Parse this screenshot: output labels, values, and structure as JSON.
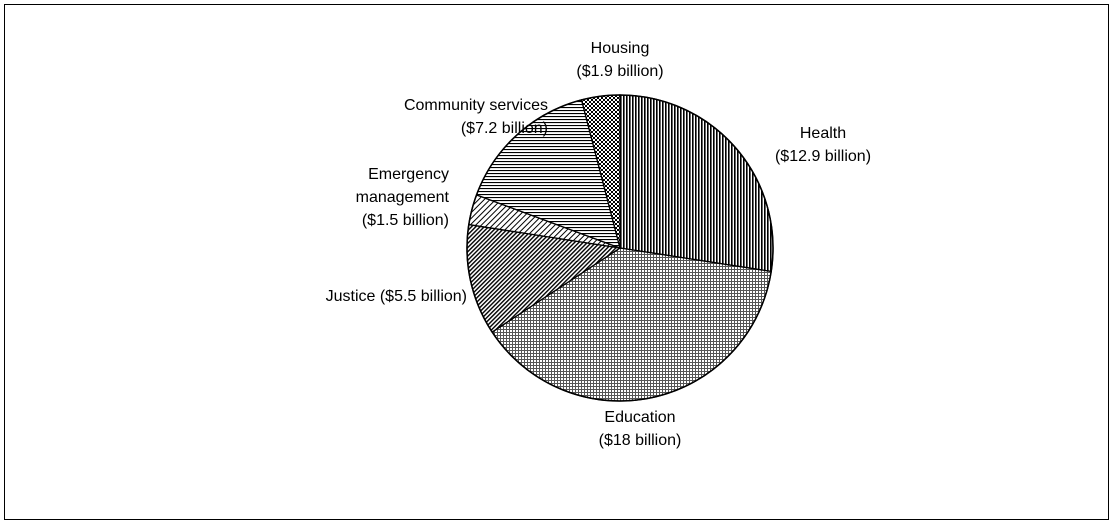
{
  "chart_data": {
    "type": "pie",
    "title": "",
    "unit": "$ billion",
    "start_angle_deg": 0,
    "direction": "clockwise",
    "slices": [
      {
        "name": "Health",
        "value": 12.9,
        "label_lines": [
          "Health",
          "($12.9 billion)"
        ],
        "pattern": "vertical-dense",
        "label_anchor": "middle"
      },
      {
        "name": "Education",
        "value": 18,
        "label_lines": [
          "Education",
          "($18 billion)"
        ],
        "pattern": "fine-grid",
        "label_anchor": "middle"
      },
      {
        "name": "Justice",
        "value": 5.5,
        "label_lines": [
          "Justice ($5.5 billion)"
        ],
        "pattern": "diagonal-dense",
        "label_anchor": "end"
      },
      {
        "name": "Emergency management",
        "value": 1.5,
        "label_lines": [
          "Emergency",
          "management",
          "($1.5 billion)"
        ],
        "pattern": "diagonal-sparse",
        "label_anchor": "end"
      },
      {
        "name": "Community services",
        "value": 7.2,
        "label_lines": [
          "Community services",
          "($7.2 billion)"
        ],
        "pattern": "horizontal",
        "label_anchor": "end"
      },
      {
        "name": "Housing",
        "value": 1.9,
        "label_lines": [
          "Housing",
          "($1.9 billion)"
        ],
        "pattern": "checker",
        "label_anchor": "middle"
      }
    ]
  }
}
